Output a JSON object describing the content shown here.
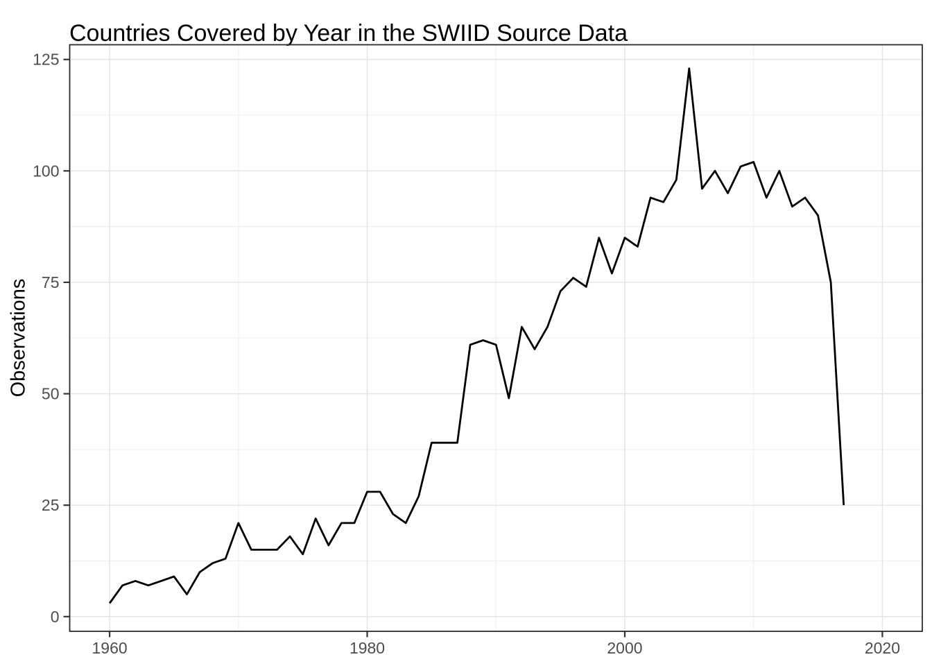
{
  "chart_data": {
    "type": "line",
    "title": "Countries Covered by Year in the SWIID Source Data",
    "xlabel": "",
    "ylabel": "Observations",
    "x": [
      1960,
      1961,
      1962,
      1963,
      1964,
      1965,
      1966,
      1967,
      1968,
      1969,
      1970,
      1971,
      1972,
      1973,
      1974,
      1975,
      1976,
      1977,
      1978,
      1979,
      1980,
      1981,
      1982,
      1983,
      1984,
      1985,
      1986,
      1987,
      1988,
      1989,
      1990,
      1991,
      1992,
      1993,
      1994,
      1995,
      1996,
      1997,
      1998,
      1999,
      2000,
      2001,
      2002,
      2003,
      2004,
      2005,
      2006,
      2007,
      2008,
      2009,
      2010,
      2011,
      2012,
      2013,
      2014,
      2015,
      2016,
      2017
    ],
    "values": [
      3,
      7,
      8,
      7,
      8,
      9,
      5,
      10,
      12,
      13,
      21,
      15,
      15,
      15,
      18,
      14,
      22,
      16,
      21,
      21,
      28,
      28,
      23,
      21,
      27,
      39,
      39,
      39,
      61,
      62,
      61,
      49,
      65,
      60,
      65,
      73,
      76,
      74,
      85,
      77,
      85,
      83,
      94,
      93,
      98,
      123,
      96,
      100,
      95,
      101,
      102,
      94,
      100,
      92,
      94,
      90,
      75,
      25
    ],
    "xlim": [
      1956.9,
      2023.1
    ],
    "ylim": [
      -3.3,
      128.3
    ],
    "x_ticks": [
      1960,
      1980,
      2000,
      2020
    ],
    "y_ticks": [
      0,
      25,
      50,
      75,
      100,
      125
    ],
    "x_minor_gridlines": [
      1970,
      1990,
      2010
    ],
    "y_minor_gridlines": [
      12.5,
      37.5,
      62.5,
      87.5,
      112.5
    ],
    "grid": true,
    "legend": "none",
    "colors": {
      "line": "#000000",
      "grid_major": "#e3e3e3",
      "grid_minor": "#ededed",
      "panel_border": "#2b2b2b",
      "tick_mark": "#333333",
      "axis_text": "#4d4d4d",
      "title_text": "#000000"
    }
  }
}
